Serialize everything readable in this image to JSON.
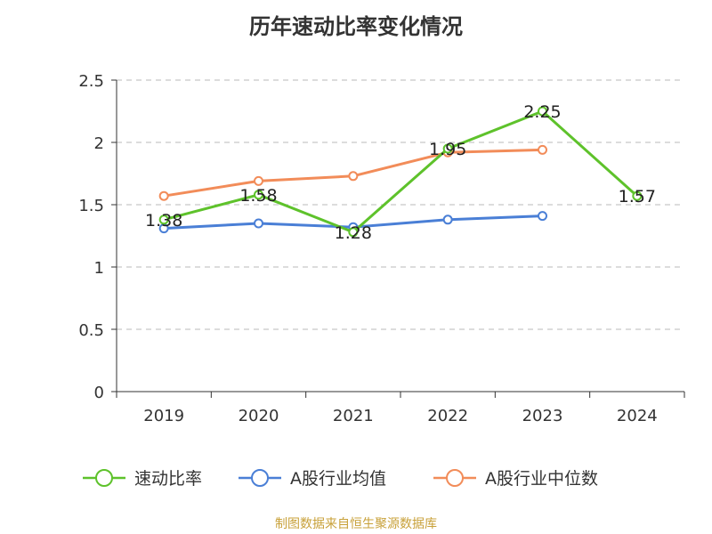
{
  "chart_data": {
    "type": "line",
    "title": "历年速动比率变化情况",
    "categories": [
      "2019",
      "2020",
      "2021",
      "2022",
      "2023",
      "2024"
    ],
    "ylim": [
      0,
      2.5
    ],
    "yticks": [
      "0",
      "0.5",
      "1",
      "1.5",
      "2",
      "2.5"
    ],
    "grid": true,
    "legend_position": "bottom",
    "series": [
      {
        "name": "速动比率",
        "color": "#5ec22b",
        "values": [
          1.38,
          1.58,
          1.28,
          1.95,
          2.25,
          1.57
        ],
        "labels": [
          "1.38",
          "1.58",
          "1.28",
          "1.95",
          "2.25",
          "1.57"
        ]
      },
      {
        "name": "A股行业均值",
        "color": "#4a7fd6",
        "values": [
          1.31,
          1.35,
          1.32,
          1.38,
          1.41,
          null
        ]
      },
      {
        "name": "A股行业中位数",
        "color": "#f28c59",
        "values": [
          1.57,
          1.69,
          1.73,
          1.92,
          1.94,
          null
        ]
      }
    ],
    "source": "制图数据来自恒生聚源数据库",
    "source_color": "#c8a13a"
  }
}
